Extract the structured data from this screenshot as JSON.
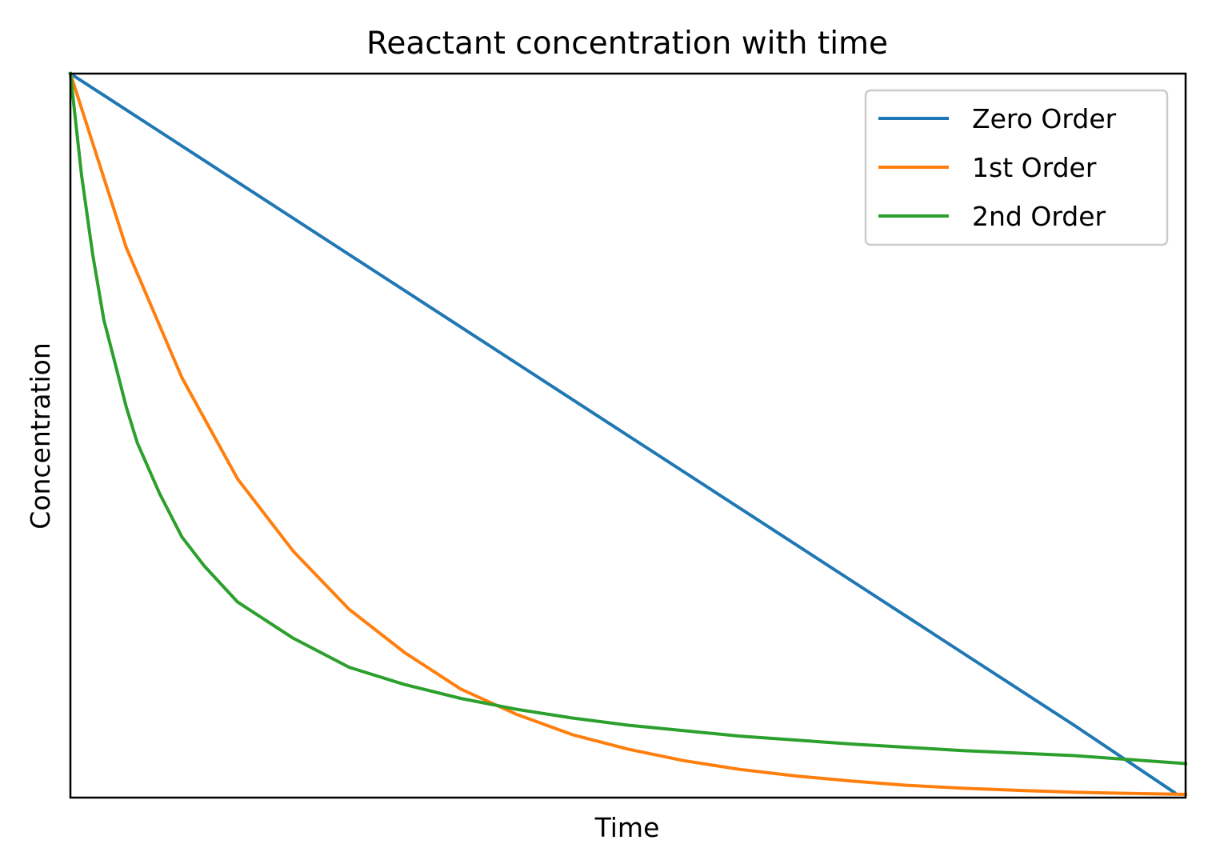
{
  "chart_data": {
    "type": "line",
    "title": "Reactant concentration with time",
    "xlabel": "Time",
    "ylabel": "Concentration",
    "xlim": [
      0,
      1
    ],
    "ylim": [
      0,
      1
    ],
    "x_ticks": [],
    "y_ticks": [],
    "grid": false,
    "legend_position": "top-right",
    "series": [
      {
        "name": "Zero Order",
        "color": "#1f77b4",
        "x": [
          0,
          0.1,
          0.2,
          0.3,
          0.4,
          0.5,
          0.6,
          0.7,
          0.8,
          0.9,
          0.99
        ],
        "y": [
          1.0,
          0.9,
          0.8,
          0.7,
          0.6,
          0.5,
          0.4,
          0.3,
          0.2,
          0.1,
          0.007
        ]
      },
      {
        "name": "1st Order",
        "color": "#ff7f0e",
        "x": [
          0,
          0.05,
          0.1,
          0.15,
          0.2,
          0.25,
          0.3,
          0.35,
          0.4,
          0.45,
          0.5,
          0.55,
          0.6,
          0.65,
          0.7,
          0.75,
          0.8,
          0.85,
          0.9,
          0.95,
          1.0
        ],
        "y": [
          1.0,
          0.76,
          0.58,
          0.44,
          0.34,
          0.26,
          0.2,
          0.15,
          0.115,
          0.087,
          0.067,
          0.051,
          0.039,
          0.03,
          0.023,
          0.017,
          0.013,
          0.01,
          0.0075,
          0.0057,
          0.0044
        ]
      },
      {
        "name": "2nd Order",
        "color": "#2ca02c",
        "x": [
          0,
          0.01,
          0.02,
          0.03,
          0.04,
          0.05,
          0.06,
          0.08,
          0.1,
          0.12,
          0.15,
          0.2,
          0.25,
          0.3,
          0.35,
          0.4,
          0.45,
          0.5,
          0.6,
          0.7,
          0.8,
          0.9,
          1.0
        ],
        "y": [
          1.0,
          0.86,
          0.75,
          0.66,
          0.6,
          0.54,
          0.49,
          0.42,
          0.36,
          0.32,
          0.27,
          0.22,
          0.18,
          0.156,
          0.137,
          0.122,
          0.11,
          0.1,
          0.085,
          0.074,
          0.065,
          0.058,
          0.047
        ]
      }
    ]
  }
}
